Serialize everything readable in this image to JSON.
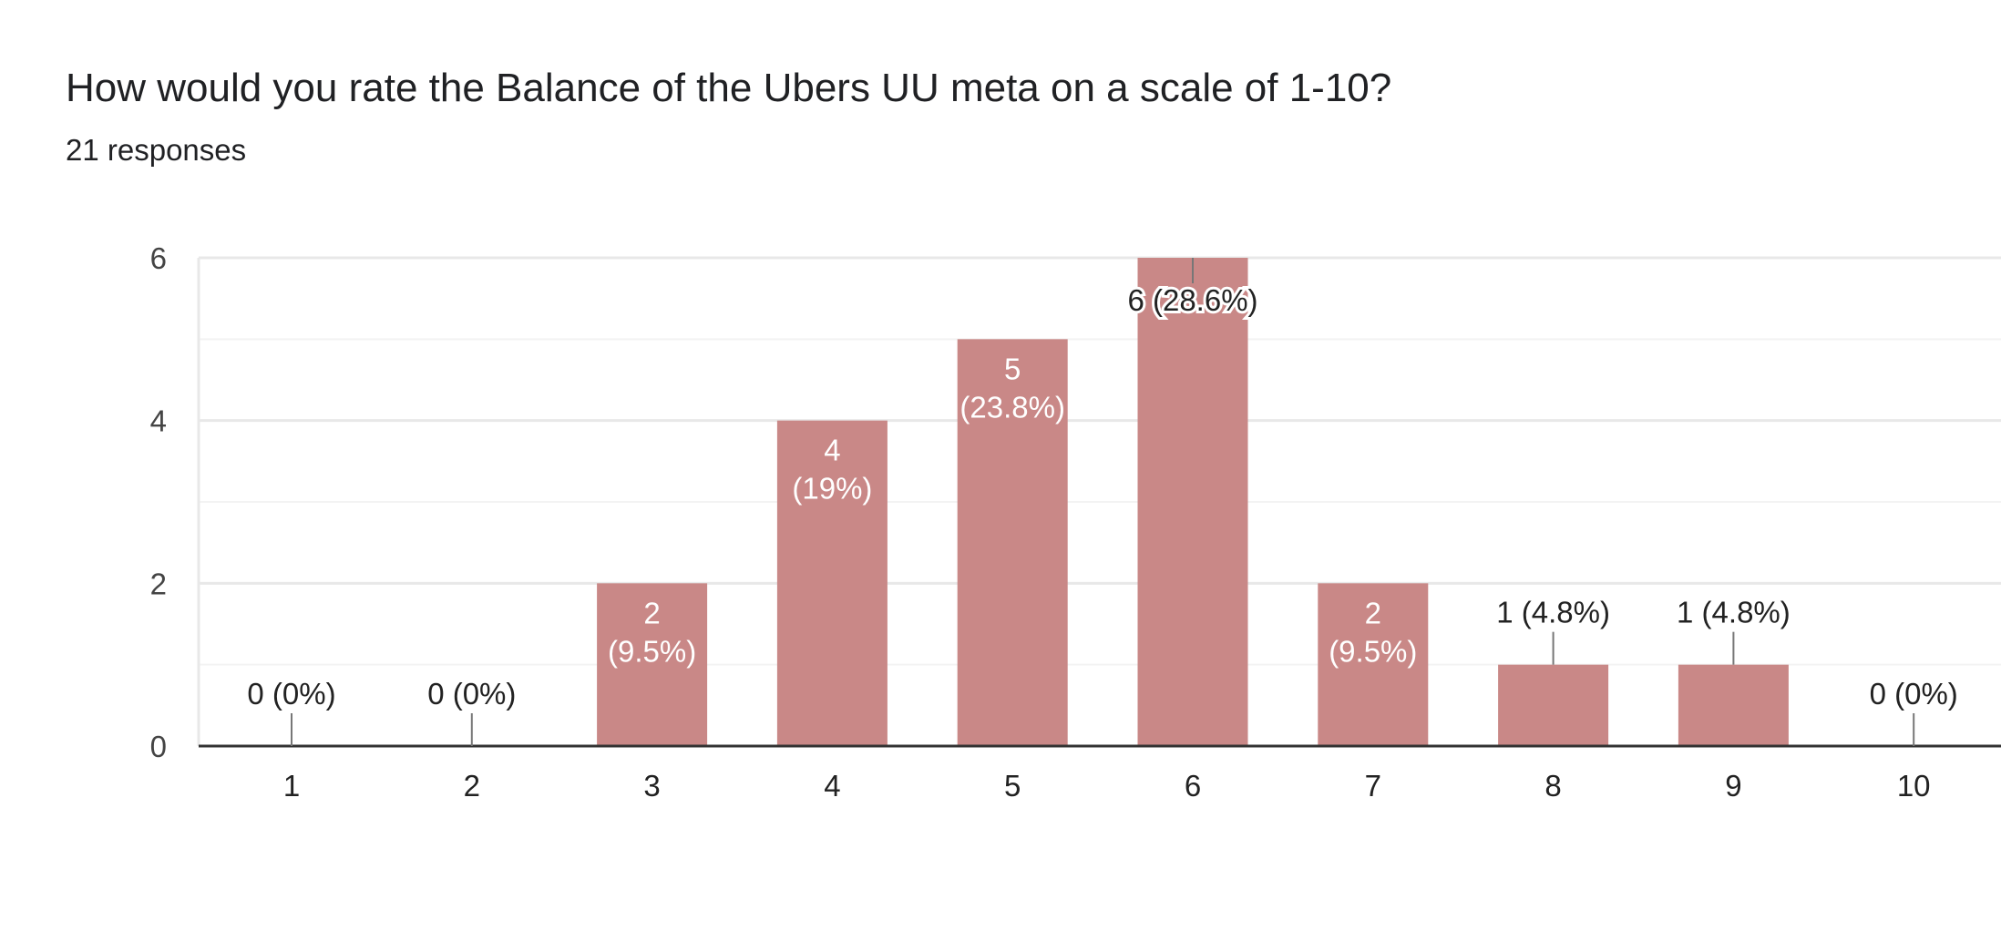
{
  "chart_data": {
    "type": "bar",
    "title": "How would you rate the Balance of the Ubers UU meta on a scale of 1-10?",
    "subtitle": "21 responses",
    "categories": [
      "1",
      "2",
      "3",
      "4",
      "5",
      "6",
      "7",
      "8",
      "9",
      "10"
    ],
    "values": [
      0,
      0,
      2,
      4,
      5,
      6,
      2,
      1,
      1,
      0
    ],
    "data_labels": [
      "0 (0%)",
      "0 (0%)",
      "2 (9.5%)",
      "4 (19%)",
      "5 (23.8%)",
      "6 (28.6%)",
      "2 (9.5%)",
      "1 (4.8%)",
      "1 (4.8%)",
      "0 (0%)"
    ],
    "ylim": [
      0,
      6
    ],
    "yticks": [
      0,
      2,
      4,
      6
    ],
    "grid": true,
    "bar_color": "#c98887"
  }
}
